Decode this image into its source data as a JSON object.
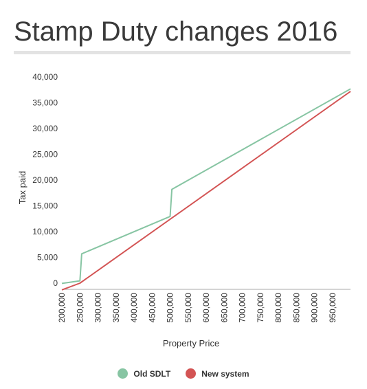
{
  "page": {
    "title": "Stamp Duty changes 2016"
  },
  "colors": {
    "old": "#87c5a3",
    "new": "#d35454",
    "axis": "#aaaaaa",
    "rule": "#e3e3e3"
  },
  "chart_data": {
    "type": "line",
    "title": "Stamp Duty changes 2016",
    "xlabel": "Property Price",
    "ylabel": "Tax paid",
    "xlim": [
      200000,
      1000000
    ],
    "ylim": [
      0,
      40000
    ],
    "x_ticks": [
      "200,000",
      "250,000",
      "300,000",
      "350,000",
      "400,000",
      "450,000",
      "500,000",
      "550,000",
      "600,000",
      "650,000",
      "700,000",
      "750,000",
      "800,000",
      "850,000",
      "900,000",
      "950,000"
    ],
    "y_ticks": [
      "0",
      "5,000",
      "10,000",
      "15,000",
      "20,000",
      "25,000",
      "30,000",
      "35,000",
      "40,000"
    ],
    "grid": false,
    "legend": "bottom",
    "series": [
      {
        "name": "Old SDLT",
        "color": "#87c5a3",
        "points": [
          [
            200000,
            750
          ],
          [
            250000,
            1250
          ],
          [
            255000,
            6500
          ],
          [
            500000,
            13750
          ],
          [
            505000,
            19000
          ],
          [
            1000000,
            38500
          ]
        ]
      },
      {
        "name": "New system",
        "color": "#d35454",
        "points": [
          [
            200000,
            -500
          ],
          [
            250000,
            800
          ],
          [
            1000000,
            38000
          ]
        ]
      }
    ]
  }
}
